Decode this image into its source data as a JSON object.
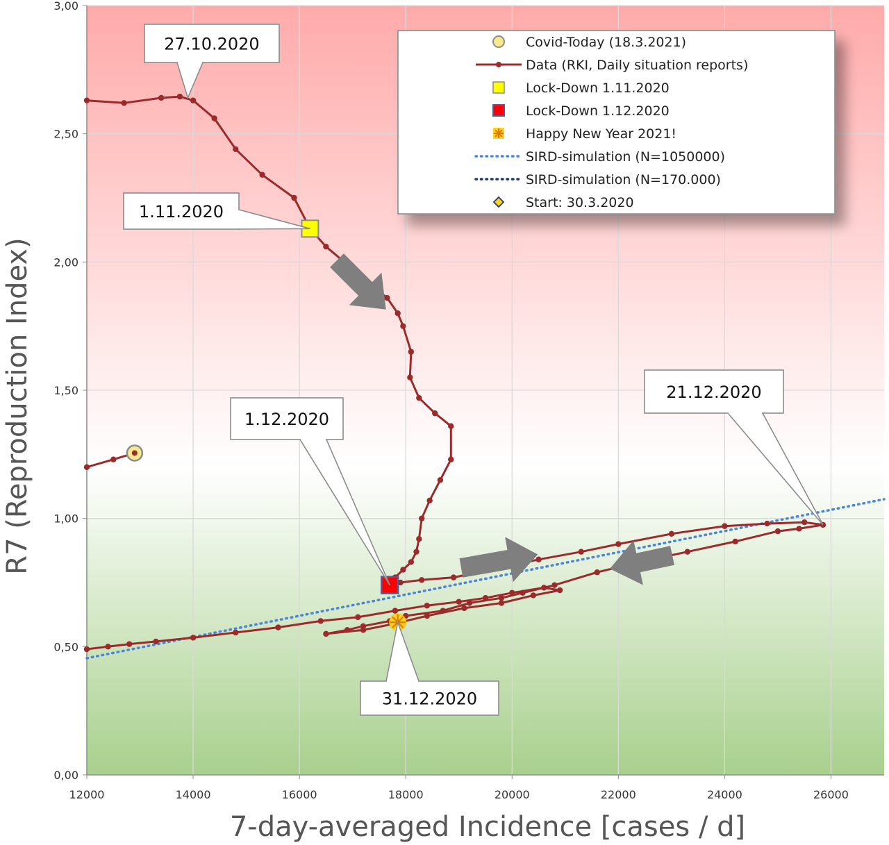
{
  "chart_data": {
    "type": "line",
    "xlabel": "7-day-averaged Incidence [cases / d]",
    "ylabel": "R7 (Reproduction Index)",
    "xlim": [
      12000,
      27000
    ],
    "ylim": [
      0,
      3
    ],
    "x_ticks": [
      12000,
      14000,
      16000,
      18000,
      20000,
      22000,
      24000,
      26000
    ],
    "x_tick_labels": [
      "12000",
      "14000",
      "16000",
      "18000",
      "20000",
      "22000",
      "24000",
      "26000"
    ],
    "y_ticks": [
      0,
      0.5,
      1,
      1.5,
      2,
      2.5,
      3
    ],
    "y_tick_labels": [
      "0,00",
      "0,50",
      "1,00",
      "1,50",
      "2,00",
      "2,50",
      "3,00"
    ],
    "grid": true,
    "legend_position": "top-right",
    "background_zones": [
      {
        "from_y": 1.0,
        "to_y": 3.0,
        "color": "#ffaaaa"
      },
      {
        "from_y": 0.0,
        "to_y": 1.0,
        "color": "#a8d08d"
      }
    ],
    "legend": [
      {
        "label": "Covid-Today (18.3.2021)",
        "symbol": "yellow-circle"
      },
      {
        "label": "Data (RKI, Daily situation reports)",
        "symbol": "dark-red-line-dots"
      },
      {
        "label": "Lock-Down 1.11.2020",
        "symbol": "yellow-square"
      },
      {
        "label": "Lock-Down 1.12.2020",
        "symbol": "red-square"
      },
      {
        "label": "Happy New Year 2021!",
        "symbol": "orange-asterisk"
      },
      {
        "label": "SIRD-simulation (N=1050000)",
        "symbol": "light-blue-dotted-line"
      },
      {
        "label": "SIRD-simulation (N=170.000)",
        "symbol": "dark-blue-dotted-line"
      },
      {
        "label": "Start: 30.3.2020",
        "symbol": "yellow-diamond"
      }
    ],
    "series": [
      {
        "name": "Data (RKI, Daily situation reports)",
        "color": "#9b2b2b",
        "segments": [
          [
            [
              12000,
              2.63
            ],
            [
              12700,
              2.62
            ],
            [
              13400,
              2.64
            ],
            [
              13750,
              2.645
            ],
            [
              14000,
              2.63
            ],
            [
              14400,
              2.56
            ],
            [
              14800,
              2.44
            ],
            [
              15300,
              2.34
            ],
            [
              15900,
              2.25
            ],
            [
              16200,
              2.13
            ],
            [
              16500,
              2.06
            ],
            [
              16900,
              1.99
            ],
            [
              17300,
              1.92
            ],
            [
              17650,
              1.86
            ],
            [
              17850,
              1.8
            ],
            [
              17950,
              1.75
            ],
            [
              18100,
              1.65
            ],
            [
              18080,
              1.55
            ],
            [
              18250,
              1.47
            ],
            [
              18550,
              1.41
            ],
            [
              18850,
              1.36
            ],
            [
              18850,
              1.23
            ],
            [
              18650,
              1.15
            ],
            [
              18450,
              1.07
            ],
            [
              18300,
              1.0
            ],
            [
              18250,
              0.92
            ],
            [
              18200,
              0.87
            ],
            [
              18100,
              0.83
            ],
            [
              17950,
              0.8
            ],
            [
              17800,
              0.77
            ],
            [
              17720,
              0.74
            ],
            [
              17900,
              0.75
            ],
            [
              18300,
              0.76
            ],
            [
              18900,
              0.77
            ],
            [
              19600,
              0.8
            ],
            [
              20500,
              0.84
            ],
            [
              21300,
              0.87
            ],
            [
              22000,
              0.9
            ],
            [
              23000,
              0.94
            ],
            [
              24000,
              0.97
            ],
            [
              24800,
              0.98
            ],
            [
              25500,
              0.985
            ],
            [
              25850,
              0.975
            ],
            [
              25400,
              0.96
            ],
            [
              25000,
              0.95
            ],
            [
              24200,
              0.91
            ],
            [
              23300,
              0.87
            ],
            [
              22400,
              0.83
            ],
            [
              21600,
              0.79
            ],
            [
              20800,
              0.74
            ],
            [
              20200,
              0.71
            ],
            [
              19800,
              0.69
            ],
            [
              19200,
              0.67
            ],
            [
              18700,
              0.64
            ],
            [
              18000,
              0.62
            ],
            [
              17700,
              0.6
            ],
            [
              17200,
              0.58
            ],
            [
              16900,
              0.565
            ],
            [
              16500,
              0.55
            ],
            [
              17200,
              0.565
            ],
            [
              17800,
              0.59
            ],
            [
              18400,
              0.62
            ],
            [
              19100,
              0.65
            ],
            [
              19800,
              0.67
            ],
            [
              20400,
              0.7
            ],
            [
              20900,
              0.72
            ],
            [
              20600,
              0.73
            ],
            [
              20000,
              0.71
            ],
            [
              19500,
              0.69
            ],
            [
              19000,
              0.675
            ],
            [
              18400,
              0.66
            ],
            [
              17800,
              0.64
            ],
            [
              17100,
              0.615
            ],
            [
              16400,
              0.6
            ],
            [
              15600,
              0.575
            ],
            [
              14800,
              0.555
            ],
            [
              14000,
              0.535
            ],
            [
              13300,
              0.52
            ],
            [
              12800,
              0.51
            ],
            [
              12400,
              0.5
            ],
            [
              12000,
              0.49
            ]
          ],
          [
            [
              12000,
              1.2
            ],
            [
              12500,
              1.23
            ],
            [
              12900,
              1.255
            ]
          ]
        ]
      },
      {
        "name": "SIRD-simulation (N=1050000)",
        "color": "#4a86d8",
        "points": [
          [
            12000,
            0.455
          ],
          [
            27000,
            1.075
          ]
        ]
      }
    ],
    "markers": [
      {
        "name": "Covid-Today (18.3.2021)",
        "x": 12900,
        "y": 1.255
      },
      {
        "name": "Lock-Down 1.11.2020",
        "x": 16200,
        "y": 2.13
      },
      {
        "name": "Lock-Down 1.12.2020",
        "x": 17700,
        "y": 0.74
      },
      {
        "name": "Happy New Year 2021!",
        "x": 17850,
        "y": 0.595
      }
    ],
    "annotations": [
      {
        "text": "27.10.2020",
        "x": 13900,
        "y": 2.64
      },
      {
        "text": "1.11.2020",
        "x": 16200,
        "y": 2.13
      },
      {
        "text": "1.12.2020",
        "x": 17700,
        "y": 0.74
      },
      {
        "text": "21.12.2020",
        "x": 25850,
        "y": 0.975
      },
      {
        "text": "31.12.2020",
        "x": 17850,
        "y": 0.595
      }
    ]
  }
}
